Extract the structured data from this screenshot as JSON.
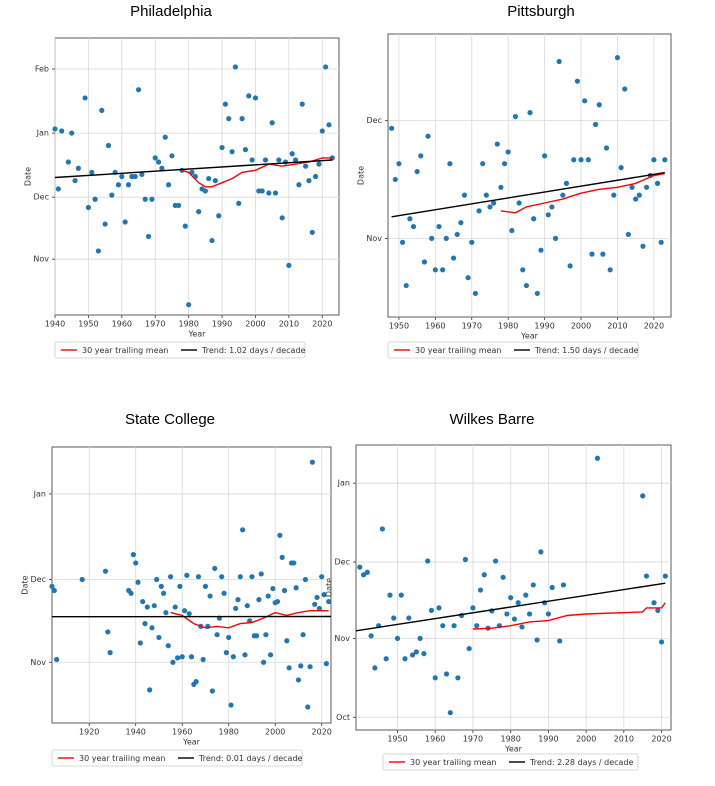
{
  "chart_data": [
    {
      "type": "scatter",
      "title": "Philadelphia",
      "xlabel": "Year",
      "ylabel": "Date",
      "xlim": [
        1940,
        2025
      ],
      "xticks": [
        1940,
        1950,
        1960,
        1970,
        1980,
        1990,
        2000,
        2010,
        2020
      ],
      "ylim": [
        4,
        138
      ],
      "yticks": [
        {
          "value": 31,
          "label": "Nov"
        },
        {
          "value": 61,
          "label": "Dec"
        },
        {
          "value": 92,
          "label": "Jan"
        },
        {
          "value": 123,
          "label": "Feb"
        }
      ],
      "grid": true,
      "series": [
        {
          "style": "points",
          "color": "#1f77b4",
          "x": [
            1940,
            1941,
            1942,
            1944,
            1945,
            1946,
            1947,
            1949,
            1950,
            1951,
            1952,
            1953,
            1954,
            1955,
            1956,
            1957,
            1958,
            1959,
            1960,
            1961,
            1962,
            1963,
            1964,
            1965,
            1966,
            1967,
            1968,
            1969,
            1970,
            1971,
            1972,
            1973,
            1974,
            1975,
            1976,
            1977,
            1978,
            1979,
            1980,
            1981,
            1982,
            1983,
            1984,
            1985,
            1986,
            1987,
            1988,
            1989,
            1990,
            1991,
            1992,
            1993,
            1994,
            1995,
            1996,
            1997,
            1998,
            1999,
            2000,
            2001,
            2002,
            2003,
            2004,
            2005,
            2006,
            2007,
            2008,
            2009,
            2010,
            2011,
            2012,
            2013,
            2014,
            2015,
            2016,
            2017,
            2018,
            2019,
            2020,
            2021,
            2022,
            2023
          ],
          "values": [
            94,
            65,
            93,
            78,
            92,
            69,
            75,
            109,
            56,
            73,
            60,
            35,
            103,
            48,
            86,
            62,
            73,
            67,
            71,
            49,
            67,
            71,
            71,
            113,
            72,
            60,
            42,
            60,
            80,
            78,
            75,
            90,
            67,
            81,
            57,
            57,
            74,
            47,
            9,
            73,
            71,
            54,
            65,
            64,
            70,
            40,
            69,
            52,
            85,
            106,
            99,
            83,
            124,
            58,
            99,
            84,
            110,
            79,
            109,
            64,
            64,
            79,
            63,
            97,
            63,
            79,
            51,
            78,
            28,
            82,
            79,
            67,
            106,
            76,
            69,
            44,
            71,
            77,
            93,
            124,
            96,
            80
          ]
        },
        {
          "style": "line",
          "name": "30 year trailing mean",
          "color": "#ff0000",
          "x": [
            1978,
            1980,
            1983,
            1985,
            1987,
            1990,
            1993,
            1996,
            2000,
            2004,
            2008,
            2012,
            2016,
            2020,
            2023
          ],
          "values": [
            74,
            73,
            68,
            66,
            66,
            68,
            70,
            73,
            74,
            77,
            76,
            77,
            78,
            80,
            80
          ]
        },
        {
          "style": "line",
          "name": "Trend: 1.02 days / decade",
          "color": "#000000",
          "x": [
            1940,
            2023
          ],
          "values": [
            70.5,
            79
          ]
        }
      ]
    },
    {
      "type": "scatter",
      "title": "Pittsburgh",
      "xlabel": "Year",
      "ylabel": "Date",
      "xlim": [
        1947,
        2024.7
      ],
      "xticks": [
        1950,
        1960,
        1970,
        1980,
        1990,
        2000,
        2010,
        2020
      ],
      "ylim": [
        11,
        83
      ],
      "yticks": [
        {
          "value": 31,
          "label": "Nov"
        },
        {
          "value": 61,
          "label": "Dec"
        }
      ],
      "grid": true,
      "series": [
        {
          "style": "points",
          "color": "#1f77b4",
          "x": [
            1948,
            1949,
            1950,
            1951,
            1952,
            1953,
            1954,
            1955,
            1956,
            1957,
            1958,
            1959,
            1960,
            1961,
            1962,
            1963,
            1964,
            1965,
            1966,
            1967,
            1968,
            1969,
            1970,
            1971,
            1972,
            1973,
            1974,
            1975,
            1976,
            1977,
            1978,
            1979,
            1980,
            1981,
            1982,
            1983,
            1984,
            1985,
            1986,
            1987,
            1988,
            1989,
            1990,
            1991,
            1992,
            1993,
            1994,
            1995,
            1996,
            1997,
            1998,
            1999,
            2000,
            2001,
            2002,
            2003,
            2004,
            2005,
            2006,
            2007,
            2008,
            2009,
            2010,
            2011,
            2012,
            2013,
            2014,
            2015,
            2016,
            2017,
            2018,
            2019,
            2020,
            2021,
            2022,
            2023
          ],
          "values": [
            59,
            46,
            50,
            30,
            19,
            36,
            34,
            48,
            52,
            25,
            57,
            31,
            23,
            34,
            23,
            31,
            50,
            26,
            32,
            35,
            42,
            21,
            30,
            17,
            38,
            50,
            42,
            39,
            40,
            55,
            44,
            50,
            53,
            33,
            62,
            40,
            23,
            19,
            63,
            36,
            17,
            28,
            52,
            37,
            39,
            31,
            76,
            42,
            45,
            24,
            51,
            71,
            51,
            66,
            51,
            27,
            60,
            65,
            27,
            54,
            23,
            42,
            77,
            49,
            69,
            32,
            44,
            41,
            42,
            29,
            44,
            47,
            51,
            45,
            30,
            51
          ]
        },
        {
          "style": "line",
          "name": "30 year trailing mean",
          "color": "#ff0000",
          "x": [
            1978,
            1982,
            1985,
            1990,
            1995,
            2000,
            2005,
            2010,
            2015,
            2020,
            2023
          ],
          "values": [
            38,
            37.5,
            39,
            40,
            41,
            42.5,
            43.5,
            44,
            45,
            47,
            47.5
          ]
        },
        {
          "style": "line",
          "name": "Trend: 1.50 days / decade",
          "color": "#000000",
          "x": [
            1948,
            2023
          ],
          "values": [
            36.5,
            47.75
          ]
        }
      ]
    },
    {
      "type": "scatter",
      "title": "State College",
      "xlabel": "Year",
      "ylabel": "Date",
      "xlim": [
        1904,
        2024
      ],
      "xticks": [
        1920,
        1940,
        1960,
        1980,
        2000,
        2020
      ],
      "ylim": [
        9,
        109
      ],
      "yticks": [
        {
          "value": 31,
          "label": "Nov"
        },
        {
          "value": 61,
          "label": "Dec"
        },
        {
          "value": 92,
          "label": "Jan"
        }
      ],
      "grid": true,
      "series": [
        {
          "style": "points",
          "color": "#1f77b4",
          "x": [
            1904,
            1905,
            1906,
            1917,
            1927,
            1928,
            1929,
            1937,
            1938,
            1939,
            1940,
            1941,
            1942,
            1943,
            1944,
            1945,
            1946,
            1947,
            1948,
            1949,
            1950,
            1951,
            1952,
            1953,
            1954,
            1955,
            1956,
            1957,
            1958,
            1959,
            1960,
            1961,
            1962,
            1963,
            1964,
            1965,
            1966,
            1967,
            1968,
            1969,
            1970,
            1971,
            1972,
            1973,
            1974,
            1975,
            1976,
            1977,
            1978,
            1979,
            1980,
            1981,
            1982,
            1983,
            1984,
            1985,
            1986,
            1987,
            1988,
            1989,
            1990,
            1991,
            1992,
            1993,
            1994,
            1995,
            1996,
            1997,
            1998,
            1999,
            2000,
            2001,
            2002,
            2003,
            2004,
            2005,
            2006,
            2007,
            2008,
            2009,
            2010,
            2011,
            2012,
            2013,
            2014,
            2015,
            2016,
            2017,
            2018,
            2019,
            2020,
            2021,
            2022,
            2023
          ],
          "values": [
            58.5,
            57,
            32,
            61,
            64,
            42,
            34.5,
            57,
            56,
            70,
            67,
            60,
            38,
            53,
            45,
            51,
            21,
            43.5,
            51.5,
            61,
            40,
            58.5,
            56,
            49,
            37,
            62,
            31,
            51,
            32.6,
            58.5,
            33,
            49.7,
            62.5,
            48.6,
            33,
            23,
            24,
            62,
            44,
            32,
            58.5,
            44,
            55,
            20.6,
            65,
            41,
            47,
            62,
            56,
            34.5,
            40,
            15.5,
            33,
            50.5,
            53.7,
            62,
            79,
            33.7,
            51.5,
            46,
            62,
            40.6,
            40.6,
            53.7,
            63,
            31,
            41,
            55,
            33.7,
            57.7,
            52.6,
            53,
            77,
            69,
            57,
            38.8,
            29,
            67,
            67,
            58,
            24.6,
            29.7,
            41,
            61,
            14.8,
            29.4,
            103.5,
            52,
            54.5,
            50.5,
            62,
            55.5,
            30.5,
            53
          ]
        },
        {
          "style": "line",
          "name": "30 year trailing mean",
          "color": "#ff0000",
          "x": [
            1955,
            1960,
            1965,
            1970,
            1975,
            1980,
            1985,
            1990,
            1995,
            2000,
            2005,
            2010,
            2015,
            2023
          ],
          "values": [
            49,
            48,
            45,
            43.5,
            44,
            43.5,
            45,
            45.4,
            47,
            49,
            48,
            49,
            49.7,
            49.7
          ]
        },
        {
          "style": "line",
          "name": "Trend: 0.01 days / decade",
          "color": "#000000",
          "x": [
            1904,
            2024
          ],
          "values": [
            47.5,
            47.6
          ]
        }
      ]
    },
    {
      "type": "scatter",
      "title": "Wilkes Barre",
      "xlabel": "Year",
      "ylabel": "Date",
      "xlim": [
        1939,
        2022.5
      ],
      "xticks": [
        1950,
        1960,
        1970,
        1980,
        1990,
        2000,
        2010,
        2020
      ],
      "ylim": [
        -5,
        107
      ],
      "yticks": [
        {
          "value": 0,
          "label": "Oct"
        },
        {
          "value": 31,
          "label": "Nov"
        },
        {
          "value": 61,
          "label": "Dec"
        },
        {
          "value": 92,
          "label": "Jan"
        }
      ],
      "grid": true,
      "series": [
        {
          "style": "points",
          "color": "#1f77b4",
          "x": [
            1940,
            1941,
            1942,
            1943,
            1944,
            1945,
            1946,
            1947,
            1948,
            1949,
            1950,
            1951,
            1952,
            1953,
            1954,
            1955,
            1956,
            1957,
            1958,
            1959,
            1960,
            1961,
            1962,
            1963,
            1964,
            1965,
            1966,
            1967,
            1968,
            1969,
            1970,
            1971,
            1972,
            1973,
            1974,
            1975,
            1976,
            1977,
            1978,
            1979,
            1980,
            1981,
            1982,
            1983,
            1984,
            1985,
            1986,
            1987,
            1988,
            1989,
            1990,
            1991,
            1993,
            1994,
            2003,
            2015,
            2016,
            2018,
            2019,
            2020,
            2021
          ],
          "values": [
            59,
            56,
            57,
            32,
            19.4,
            36,
            74,
            23,
            48,
            39,
            31,
            48,
            23,
            39,
            24.5,
            25.7,
            31,
            25,
            61.4,
            42,
            15.5,
            43,
            36,
            17,
            1.8,
            36,
            15.5,
            40,
            62,
            27,
            43,
            36,
            50,
            56,
            35,
            41.8,
            61.4,
            36,
            55,
            40.6,
            47,
            38.6,
            45,
            35.5,
            48,
            40.6,
            52,
            30.4,
            65,
            45,
            40.6,
            51,
            30,
            52,
            101.8,
            87,
            55.5,
            45,
            42,
            29.6,
            55.5
          ]
        },
        {
          "style": "line",
          "name": "30 year trailing mean",
          "color": "#ff0000",
          "x": [
            1970,
            1975,
            1980,
            1985,
            1990,
            1995,
            2000,
            2015,
            2016,
            2020,
            2021
          ],
          "values": [
            34.7,
            35,
            36,
            37.5,
            38,
            40,
            40.6,
            41.4,
            43,
            43,
            45
          ]
        },
        {
          "style": "line",
          "name": "Trend: 2.28 days / decade",
          "color": "#000000",
          "x": [
            1939,
            2021
          ],
          "values": [
            34,
            52.7
          ]
        }
      ]
    }
  ]
}
